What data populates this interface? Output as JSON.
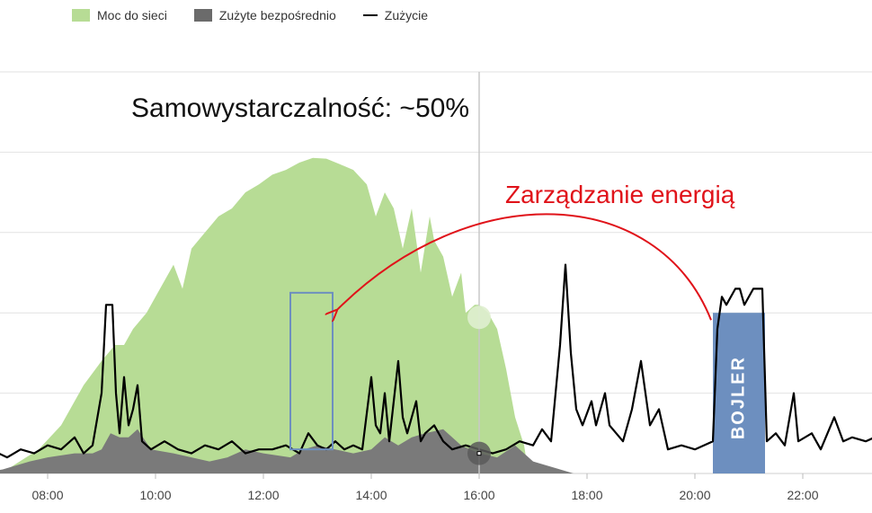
{
  "legend": {
    "grid_export": "Moc do sieci",
    "direct_use": "Zużyte bezpośrednio",
    "consumption": "Zużycie"
  },
  "annotations": {
    "self_sufficiency": "Samowystarczalność: ~50%",
    "energy_management": "Zarządzanie energią",
    "boiler": "BOJLER"
  },
  "colors": {
    "grid_export": "#b7dc95",
    "direct_use": "#7a7a7a",
    "consumption": "#000000",
    "boiler": "#6d8fbf",
    "arrow": "#e0131a",
    "highlight_box": "#6d8fbf",
    "gridline": "#e2e2e2",
    "cursor": "#c8c8c8"
  },
  "chart_data": {
    "type": "area",
    "xlabel": "",
    "ylabel": "",
    "x_ticks": [
      "08:00",
      "10:00",
      "12:00",
      "14:00",
      "16:00",
      "18:00",
      "20:00",
      "22:00"
    ],
    "x_range": [
      "06:40",
      "23:50"
    ],
    "y_range": [
      0,
      5
    ],
    "gridlines": true,
    "legend_position": "top-left",
    "series": [
      {
        "name": "Moc do sieci",
        "type": "area",
        "points": [
          [
            "06:40",
            0
          ],
          [
            "07:15",
            0.05
          ],
          [
            "07:50",
            0.3
          ],
          [
            "08:15",
            0.6
          ],
          [
            "08:40",
            1.1
          ],
          [
            "09:00",
            1.4
          ],
          [
            "09:15",
            1.6
          ],
          [
            "09:25",
            1.6
          ],
          [
            "09:35",
            1.8
          ],
          [
            "09:50",
            2.0
          ],
          [
            "10:05",
            2.3
          ],
          [
            "10:20",
            2.6
          ],
          [
            "10:30",
            2.3
          ],
          [
            "10:40",
            2.8
          ],
          [
            "10:55",
            3.0
          ],
          [
            "11:10",
            3.2
          ],
          [
            "11:25",
            3.3
          ],
          [
            "11:40",
            3.5
          ],
          [
            "11:55",
            3.6
          ],
          [
            "12:10",
            3.72
          ],
          [
            "12:25",
            3.78
          ],
          [
            "12:40",
            3.87
          ],
          [
            "12:55",
            3.93
          ],
          [
            "13:10",
            3.92
          ],
          [
            "13:25",
            3.85
          ],
          [
            "13:40",
            3.78
          ],
          [
            "13:55",
            3.6
          ],
          [
            "14:05",
            3.2
          ],
          [
            "14:15",
            3.5
          ],
          [
            "14:25",
            3.3
          ],
          [
            "14:35",
            2.8
          ],
          [
            "14:45",
            3.3
          ],
          [
            "14:55",
            2.5
          ],
          [
            "15:05",
            3.2
          ],
          [
            "15:10",
            2.9
          ],
          [
            "15:20",
            2.7
          ],
          [
            "15:30",
            2.2
          ],
          [
            "15:40",
            2.5
          ],
          [
            "15:45",
            2.0
          ],
          [
            "15:55",
            2.1
          ],
          [
            "16:00",
            2.1
          ],
          [
            "16:10",
            2.0
          ],
          [
            "16:20",
            1.8
          ],
          [
            "16:30",
            1.3
          ],
          [
            "16:40",
            0.7
          ],
          [
            "16:50",
            0.35
          ],
          [
            "16:55",
            0
          ]
        ]
      },
      {
        "name": "Zużyte bezpośrednio",
        "type": "area",
        "points": [
          [
            "06:40",
            0
          ],
          [
            "07:10",
            0.05
          ],
          [
            "07:40",
            0.15
          ],
          [
            "08:00",
            0.2
          ],
          [
            "08:30",
            0.25
          ],
          [
            "08:50",
            0.25
          ],
          [
            "09:00",
            0.3
          ],
          [
            "09:10",
            0.5
          ],
          [
            "09:20",
            0.45
          ],
          [
            "09:30",
            0.45
          ],
          [
            "09:40",
            0.55
          ],
          [
            "09:55",
            0.3
          ],
          [
            "10:20",
            0.25
          ],
          [
            "10:40",
            0.2
          ],
          [
            "11:00",
            0.15
          ],
          [
            "11:20",
            0.2
          ],
          [
            "11:40",
            0.3
          ],
          [
            "12:00",
            0.25
          ],
          [
            "12:30",
            0.2
          ],
          [
            "12:45",
            0.3
          ],
          [
            "13:00",
            0.35
          ],
          [
            "13:20",
            0.3
          ],
          [
            "13:40",
            0.25
          ],
          [
            "14:00",
            0.3
          ],
          [
            "14:15",
            0.45
          ],
          [
            "14:30",
            0.35
          ],
          [
            "14:45",
            0.45
          ],
          [
            "15:00",
            0.5
          ],
          [
            "15:20",
            0.55
          ],
          [
            "15:40",
            0.35
          ],
          [
            "16:00",
            0.25
          ],
          [
            "16:20",
            0.2
          ],
          [
            "16:40",
            0.35
          ],
          [
            "17:00",
            0.15
          ],
          [
            "17:30",
            0.05
          ],
          [
            "17:45",
            0
          ]
        ]
      },
      {
        "name": "Zużycie",
        "type": "line",
        "points": [
          [
            "06:40",
            0.2
          ],
          [
            "07:00",
            0.28
          ],
          [
            "07:15",
            0.2
          ],
          [
            "07:30",
            0.3
          ],
          [
            "07:45",
            0.25
          ],
          [
            "08:00",
            0.35
          ],
          [
            "08:15",
            0.3
          ],
          [
            "08:30",
            0.45
          ],
          [
            "08:40",
            0.25
          ],
          [
            "08:50",
            0.35
          ],
          [
            "09:00",
            1.0
          ],
          [
            "09:05",
            2.1
          ],
          [
            "09:12",
            2.1
          ],
          [
            "09:16",
            1.0
          ],
          [
            "09:20",
            0.5
          ],
          [
            "09:25",
            1.2
          ],
          [
            "09:30",
            0.6
          ],
          [
            "09:35",
            0.8
          ],
          [
            "09:40",
            1.1
          ],
          [
            "09:45",
            0.4
          ],
          [
            "09:55",
            0.3
          ],
          [
            "10:10",
            0.4
          ],
          [
            "10:25",
            0.3
          ],
          [
            "10:40",
            0.25
          ],
          [
            "10:55",
            0.35
          ],
          [
            "11:10",
            0.3
          ],
          [
            "11:25",
            0.4
          ],
          [
            "11:40",
            0.25
          ],
          [
            "11:55",
            0.3
          ],
          [
            "12:10",
            0.3
          ],
          [
            "12:25",
            0.35
          ],
          [
            "12:40",
            0.25
          ],
          [
            "12:50",
            0.5
          ],
          [
            "13:00",
            0.35
          ],
          [
            "13:10",
            0.3
          ],
          [
            "13:20",
            0.4
          ],
          [
            "13:30",
            0.3
          ],
          [
            "13:40",
            0.35
          ],
          [
            "13:50",
            0.3
          ],
          [
            "14:00",
            1.2
          ],
          [
            "14:05",
            0.6
          ],
          [
            "14:10",
            0.5
          ],
          [
            "14:15",
            1.0
          ],
          [
            "14:20",
            0.4
          ],
          [
            "14:30",
            1.4
          ],
          [
            "14:35",
            0.7
          ],
          [
            "14:40",
            0.5
          ],
          [
            "14:50",
            0.9
          ],
          [
            "14:55",
            0.4
          ],
          [
            "15:00",
            0.5
          ],
          [
            "15:10",
            0.6
          ],
          [
            "15:20",
            0.4
          ],
          [
            "15:30",
            0.3
          ],
          [
            "15:45",
            0.35
          ],
          [
            "16:00",
            0.3
          ],
          [
            "16:15",
            0.25
          ],
          [
            "16:30",
            0.3
          ],
          [
            "16:45",
            0.4
          ],
          [
            "17:00",
            0.35
          ],
          [
            "17:10",
            0.55
          ],
          [
            "17:20",
            0.4
          ],
          [
            "17:30",
            1.6
          ],
          [
            "17:36",
            2.6
          ],
          [
            "17:42",
            1.5
          ],
          [
            "17:48",
            0.8
          ],
          [
            "17:55",
            0.6
          ],
          [
            "18:05",
            0.9
          ],
          [
            "18:10",
            0.6
          ],
          [
            "18:20",
            1.0
          ],
          [
            "18:25",
            0.6
          ],
          [
            "18:40",
            0.4
          ],
          [
            "18:50",
            0.8
          ],
          [
            "19:00",
            1.4
          ],
          [
            "19:05",
            1.0
          ],
          [
            "19:10",
            0.6
          ],
          [
            "19:20",
            0.8
          ],
          [
            "19:30",
            0.3
          ],
          [
            "19:45",
            0.35
          ],
          [
            "20:00",
            0.3
          ],
          [
            "20:10",
            0.35
          ],
          [
            "20:20",
            0.4
          ],
          [
            "20:25",
            1.8
          ],
          [
            "20:30",
            2.2
          ],
          [
            "20:35",
            2.1
          ],
          [
            "20:45",
            2.3
          ],
          [
            "20:50",
            2.3
          ],
          [
            "20:55",
            2.1
          ],
          [
            "21:05",
            2.3
          ],
          [
            "21:15",
            2.3
          ],
          [
            "21:20",
            0.4
          ],
          [
            "21:30",
            0.5
          ],
          [
            "21:40",
            0.35
          ],
          [
            "21:50",
            1.0
          ],
          [
            "21:55",
            0.4
          ],
          [
            "22:10",
            0.5
          ],
          [
            "22:20",
            0.3
          ],
          [
            "22:35",
            0.7
          ],
          [
            "22:45",
            0.4
          ],
          [
            "22:55",
            0.45
          ],
          [
            "23:10",
            0.4
          ],
          [
            "23:20",
            0.45
          ],
          [
            "23:30",
            0.3
          ],
          [
            "23:50",
            0.25
          ]
        ]
      }
    ],
    "highlight_interval": [
      "20:20",
      "21:20"
    ],
    "highlight_label": "BOJLER",
    "target_interval": [
      "12:45",
      "13:45"
    ],
    "cursor_time": "16:00"
  }
}
